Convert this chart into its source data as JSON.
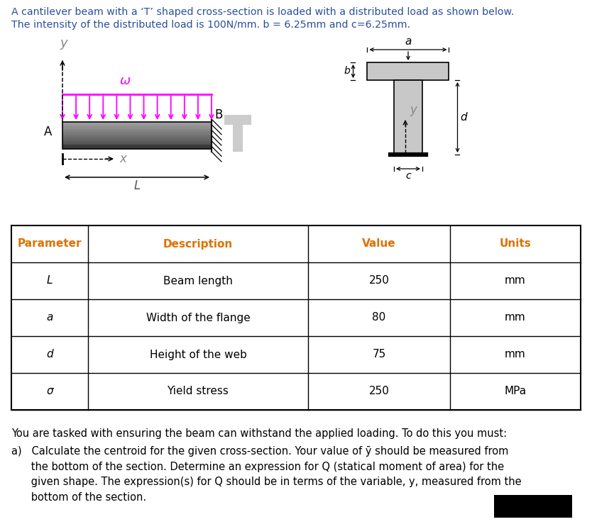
{
  "title_line1": "A cantilever beam with a ‘T’ shaped cross-section is loaded with a distributed load as shown below.",
  "title_line2": "The intensity of the distributed load is 100N/mm. b = 6.25mm and c=6.25mm.",
  "beam_label_A": "A",
  "beam_label_B": "B",
  "omega_label": "ω",
  "x_label": "x",
  "y_label": "y",
  "L_label": "L",
  "a_label": "a",
  "b_label": "b",
  "c_label": "c",
  "d_label": "d",
  "y_cs_label": "y",
  "table_headers": [
    "Parameter",
    "Description",
    "Value",
    "Units"
  ],
  "table_rows": [
    [
      "L",
      "Beam length",
      "250",
      "mm"
    ],
    [
      "a",
      "Width of the flange",
      "80",
      "mm"
    ],
    [
      "d",
      "Height of the web",
      "75",
      "mm"
    ],
    [
      "σ",
      "Yield stress",
      "250",
      "MPa"
    ]
  ],
  "task_text_line1": "You are tasked with ensuring the beam can withstand the applied loading. To do this you must:",
  "task_text_a1": "a)   Calculate the centroid for the given cross-section. Your value of ȳ should be measured from",
  "task_text_a2": "      the bottom of the section. Determine an expression for Q (statical moment of area) for the",
  "task_text_a3": "      given shape. The expression(s) for Q should be in terms of the variable, y, measured from the",
  "task_text_a4": "      bottom of the section.",
  "magenta": "#FF00FF",
  "light_gray": "#C8C8C8",
  "orange_header": "#E07000",
  "title_color": "#2B4E9C"
}
